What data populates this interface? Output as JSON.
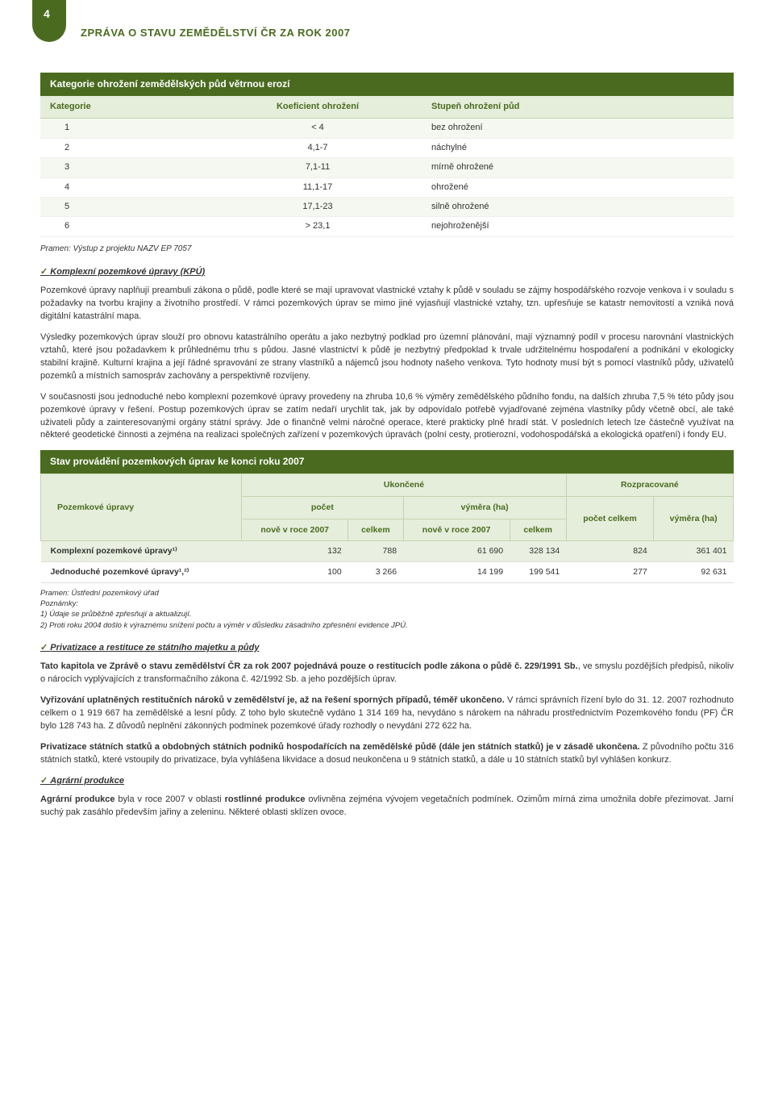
{
  "page_number": "4",
  "report_title": "ZPRÁVA O STAVU ZEMĚDĚLSTVÍ ČR ZA ROK 2007",
  "colors": {
    "brand_green": "#4a6b1f",
    "light_green_bg": "#e5eedb",
    "row_alt": "#f5f8f0",
    "status_row_alt": "#eaf0e1",
    "border": "#c5d3b0"
  },
  "table1": {
    "title": "Kategorie ohrožení zemědělských půd větrnou erozí",
    "headers": [
      "Kategorie",
      "Koeficient ohrožení",
      "Stupeň ohrožení půd"
    ],
    "rows": [
      [
        "1",
        "< 4",
        "bez ohrožení"
      ],
      [
        "2",
        "4,1-7",
        "náchylné"
      ],
      [
        "3",
        "7,1-11",
        "mírně ohrožené"
      ],
      [
        "4",
        "11,1-17",
        "ohrožené"
      ],
      [
        "5",
        "17,1-23",
        "silně ohrožené"
      ],
      [
        "6",
        "> 23,1",
        "nejohroženější"
      ]
    ],
    "source": "Pramen: Výstup z projektu NAZV EP 7057"
  },
  "kpu": {
    "heading": "Komplexní pozemkové úpravy (KPÚ)",
    "p1": "Pozemkové úpravy naplňují preambuli zákona o půdě, podle které se mají upravovat vlastnické vztahy k půdě v souladu se zájmy hospodářského rozvoje venkova i v souladu s požadavky na tvorbu krajiny a životního prostředí. V rámci pozemkových úprav se mimo jiné vyjasňují vlastnické vztahy, tzn. upřesňuje se katastr nemovitostí a vzniká nová digitální katastrální mapa.",
    "p2": "Výsledky pozemkových úprav slouží pro obnovu katastrálního operátu a jako nezbytný podklad pro územní plánování, mají významný podíl v procesu narovnání vlastnických vztahů, které jsou požadavkem k průhlednému trhu s půdou. Jasné vlastnictví k půdě je nezbytný předpoklad k trvale udržitelnému hospodaření a podnikání v ekologicky stabilní krajině. Kulturní krajina a její řádné spravování ze strany vlastníků a nájemců jsou hodnoty našeho venkova. Tyto hodnoty musí být s pomocí vlastníků půdy, uživatelů pozemků a místních samospráv zachovány a perspektivně rozvíjeny.",
    "p3": "V současnosti jsou jednoduché nebo komplexní pozemkové úpravy provedeny na zhruba 10,6 % výměry zemědělského půdního fondu, na dalších zhruba 7,5 % této půdy jsou pozemkové úpravy v řešení. Postup pozemkových úprav se zatím nedaří urychlit tak, jak by odpovídalo potřebě vyjadřované zejména vlastníky půdy včetně obcí, ale také uživateli půdy a zainteresovanými orgány státní správy. Jde o finančně velmi náročné operace, které prakticky plně hradí stát. V posledních letech lze částečně využívat na některé geodetické činnosti a zejména na realizaci společných zařízení v pozemkových úpravách (polní cesty, protierozní, vodohospodářská a ekologická opatření) i fondy EU."
  },
  "table2": {
    "title": "Stav provádění pozemkových úprav ke konci roku 2007",
    "col_groups": {
      "row_label": "Pozemkové úpravy",
      "ukoncene": "Ukončené",
      "rozpracovane": "Rozpracované",
      "pocet": "počet",
      "vymera_ha": "výměra (ha)",
      "nove_2007": "nově v roce 2007",
      "celkem": "celkem",
      "pocet_celkem": "počet celkem",
      "vymera_ha2": "výměra (ha)"
    },
    "rows": [
      {
        "label": "Komplexní pozemkové úpravy¹⁾",
        "v": [
          "132",
          "788",
          "61 690",
          "328 134",
          "824",
          "361 401"
        ]
      },
      {
        "label": "Jednoduché pozemkové úpravy¹,²⁾",
        "v": [
          "100",
          "3 266",
          "14 199",
          "199 541",
          "277",
          "92 631"
        ]
      }
    ],
    "notes": [
      "Pramen: Ústřední pozemkový úřad",
      "Poznámky:",
      "1) Údaje se průběžně zpřesňují a aktualizují.",
      "2) Proti roku 2004 došlo k výraznému snížení počtu a výměr v důsledku zásadního zpřesnění evidence JPÚ."
    ]
  },
  "privatizace": {
    "heading": "Privatizace a restituce ze státního majetku a půdy",
    "p1a": "Tato kapitola ve Zprávě o stavu zemědělství ČR za rok 2007 pojednává pouze o restitucích podle zákona o půdě č. 229/1991 Sb.",
    "p1b": ", ve smyslu pozdějších předpisů, nikoliv o nárocích vyplývajících z transformačního zákona č. 42/1992 Sb. a jeho pozdějších úprav.",
    "p2a": "Vyřizování uplatněných restitučních nároků v zemědělství je, až na řešení sporných případů, téměř ukončeno.",
    "p2b": " V rámci správních řízení bylo do 31. 12. 2007 rozhodnuto celkem o 1 919 667 ha zemědělské a lesní půdy. Z toho bylo skutečně vydáno 1 314 169 ha, nevydáno s nárokem na náhradu prostřednictvím Pozemkového fondu (PF) ČR bylo 128 743 ha. Z důvodů neplnění zákonných podmínek pozemkové úřady rozhodly o nevydání 272 622 ha.",
    "p3a": "Privatizace státních statků a obdobných státních podniků hospodařících na zemědělské půdě (dále jen státních statků) je v zásadě ukončena.",
    "p3b": " Z původního počtu 316 státních statků, které vstoupily do privatizace, byla vyhlášena likvidace a dosud neukončena u 9 státních statků, a dále u 10 státních statků byl vyhlášen konkurz."
  },
  "agrarni": {
    "heading": "Agrární produkce",
    "p1a": "Agrární produkce",
    "p1b": " byla v roce 2007 v oblasti ",
    "p1c": "rostlinné produkce",
    "p1d": " ovlivněna zejména vývojem vegetačních podmínek. Ozimům mírná zima umožnila dobře přezimovat. Jarní suchý pak zasáhlo především jařiny a zeleninu. Některé oblasti sklízen ovoce."
  }
}
